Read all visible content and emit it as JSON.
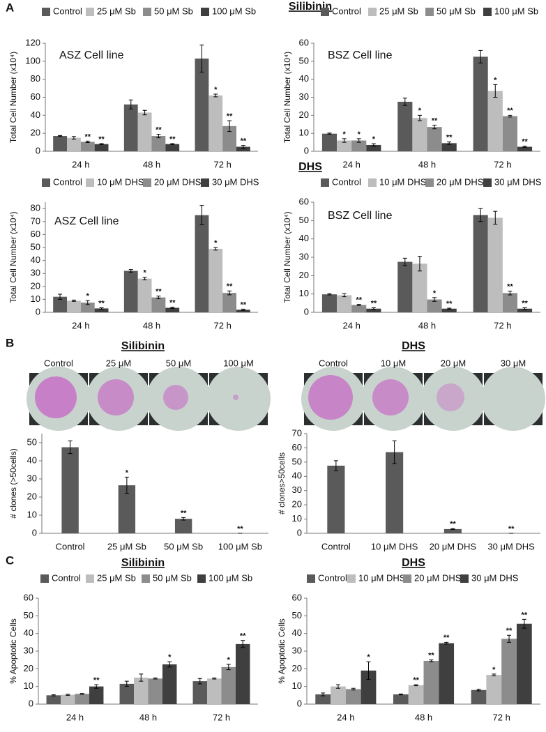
{
  "figure": {
    "panel_labels": [
      "A",
      "B",
      "C"
    ],
    "headings": [
      "Silibinin",
      "DHS",
      "Silibinin",
      "DHS",
      "Silibinin",
      "DHS"
    ],
    "photo_labels": [
      [
        "Control",
        "25 μM",
        "50 μM",
        "100 μM"
      ],
      [
        "Control",
        "10 μM",
        "20 μM",
        "30 μM"
      ]
    ]
  },
  "chart_data": [
    {
      "type": "bar",
      "annotation": "ASZ Cell line",
      "ylabel": "Total Cell Number (x10⁴)",
      "categories": [
        "24 h",
        "48 h",
        "72 h"
      ],
      "ylim": [
        0,
        120
      ],
      "yticks": [
        0,
        20,
        40,
        60,
        80,
        100,
        120
      ],
      "series": [
        {
          "name": "Control",
          "color": "#5a5a5a",
          "values": [
            17,
            52,
            103
          ],
          "errors": [
            0.5,
            5,
            15
          ],
          "significance": [
            null,
            null,
            null
          ]
        },
        {
          "name": "25 μM Sb",
          "color": "#bdbdbd",
          "values": [
            15,
            43,
            62
          ],
          "errors": [
            1.5,
            2.5,
            1.5
          ],
          "significance": [
            null,
            null,
            "*"
          ]
        },
        {
          "name": "50 μM Sb",
          "color": "#8c8c8c",
          "values": [
            10.5,
            17,
            28
          ],
          "errors": [
            0.8,
            2,
            6
          ],
          "significance": [
            "**",
            "**",
            "**"
          ]
        },
        {
          "name": "100 μM Sb",
          "color": "#3f3f3f",
          "values": [
            8,
            8,
            5
          ],
          "errors": [
            0.5,
            0.5,
            1.5
          ],
          "significance": [
            "**",
            "**",
            "**"
          ]
        }
      ]
    },
    {
      "type": "bar",
      "annotation": "BSZ Cell line",
      "ylabel": "Total Cell Number (x10⁴)",
      "categories": [
        "24 h",
        "48 h",
        "72 h"
      ],
      "ylim": [
        0,
        60
      ],
      "yticks": [
        0,
        10,
        20,
        30,
        40,
        50,
        60
      ],
      "series": [
        {
          "name": "Control",
          "color": "#5a5a5a",
          "values": [
            9.8,
            27.5,
            52.5
          ],
          "errors": [
            0.3,
            2,
            3.5
          ],
          "significance": [
            null,
            null,
            null
          ]
        },
        {
          "name": "25 μM Sb",
          "color": "#bdbdbd",
          "values": [
            6,
            18.5,
            33.5
          ],
          "errors": [
            1,
            1.5,
            3.5
          ],
          "significance": [
            "*",
            "*",
            "*"
          ]
        },
        {
          "name": "50 μM Sb",
          "color": "#8c8c8c",
          "values": [
            6,
            13.5,
            19.5
          ],
          "errors": [
            1,
            1,
            0.5
          ],
          "significance": [
            "*",
            "**",
            "**"
          ]
        },
        {
          "name": "100 μM Sb",
          "color": "#3f3f3f",
          "values": [
            3.5,
            4.5,
            2.5
          ],
          "errors": [
            0.7,
            0.7,
            0.3
          ],
          "significance": [
            "*",
            "**",
            "**"
          ]
        }
      ]
    },
    {
      "type": "bar",
      "annotation": "ASZ Cell line",
      "ylabel": "Total Cell Number (x10⁴)",
      "categories": [
        "24 h",
        "48 h",
        "72 h"
      ],
      "ylim": [
        0,
        85
      ],
      "yticks": [
        0,
        10,
        20,
        30,
        40,
        50,
        60,
        70,
        80
      ],
      "series": [
        {
          "name": "Control",
          "color": "#5a5a5a",
          "values": [
            12,
            32,
            75
          ],
          "errors": [
            2,
            1,
            7.5
          ],
          "significance": [
            null,
            null,
            null
          ]
        },
        {
          "name": "10 μM DHS",
          "color": "#bdbdbd",
          "values": [
            9,
            26,
            49
          ],
          "errors": [
            0.5,
            1,
            1
          ],
          "significance": [
            null,
            "*",
            "*"
          ]
        },
        {
          "name": "20 μM DHS",
          "color": "#8c8c8c",
          "values": [
            7.5,
            11.5,
            15
          ],
          "errors": [
            1.5,
            1,
            1.5
          ],
          "significance": [
            "*",
            "**",
            "**"
          ]
        },
        {
          "name": "30 μM DHS",
          "color": "#3f3f3f",
          "values": [
            3,
            3.5,
            2
          ],
          "errors": [
            0.5,
            0.5,
            0.5
          ],
          "significance": [
            "**",
            "**",
            "**"
          ]
        }
      ]
    },
    {
      "type": "bar",
      "annotation": "BSZ Cell line",
      "ylabel": "Total Cell Number (x10⁴)",
      "categories": [
        "24 h",
        "48 h",
        "72 h"
      ],
      "ylim": [
        0,
        60
      ],
      "yticks": [
        0,
        10,
        20,
        30,
        40,
        50,
        60
      ],
      "series": [
        {
          "name": "Control",
          "color": "#5a5a5a",
          "values": [
            9.8,
            27.5,
            53
          ],
          "errors": [
            0.3,
            2,
            3.5
          ],
          "significance": [
            null,
            null,
            null
          ]
        },
        {
          "name": "10 μM DHS",
          "color": "#bdbdbd",
          "values": [
            9.3,
            26.5,
            51.5
          ],
          "errors": [
            0.8,
            4,
            3.5
          ],
          "significance": [
            null,
            null,
            null
          ]
        },
        {
          "name": "20 μM DHS",
          "color": "#8c8c8c",
          "values": [
            4,
            7,
            10.5
          ],
          "errors": [
            0.3,
            1,
            1
          ],
          "significance": [
            "**",
            "*",
            "**"
          ]
        },
        {
          "name": "30 μM DHS",
          "color": "#3f3f3f",
          "values": [
            2,
            2,
            2
          ],
          "errors": [
            0.5,
            0.3,
            0.5
          ],
          "significance": [
            "**",
            "**",
            "**"
          ]
        }
      ]
    },
    {
      "type": "bar",
      "ylabel": "# clones (>50cells)",
      "categories": [
        "Control",
        "25 μM Sb",
        "50 μM Sb",
        "100 μM Sb"
      ],
      "ylim": [
        0,
        55
      ],
      "yticks": [
        0,
        10,
        20,
        30,
        40,
        50
      ],
      "color": "#5a5a5a",
      "values": [
        47.5,
        26.5,
        8,
        0
      ],
      "errors": [
        3.5,
        4.5,
        0.7,
        0
      ],
      "significance": [
        null,
        "*",
        "**",
        "**"
      ]
    },
    {
      "type": "bar",
      "ylabel": "# clones>50cells",
      "categories": [
        "Control",
        "10 μM DHS",
        "20 μM DHS",
        "30 μM DHS"
      ],
      "ylim": [
        0,
        70
      ],
      "yticks": [
        0,
        10,
        20,
        30,
        40,
        50,
        60,
        70
      ],
      "color": "#5a5a5a",
      "values": [
        47.5,
        57,
        3,
        0
      ],
      "errors": [
        3.5,
        8,
        0.3,
        0
      ],
      "significance": [
        null,
        null,
        "**",
        "**"
      ]
    },
    {
      "type": "bar",
      "ylabel": "% Apoptotic Cells",
      "categories": [
        "24 h",
        "48 h",
        "72 h"
      ],
      "ylim": [
        0,
        60
      ],
      "yticks": [
        0,
        10,
        20,
        30,
        40,
        50,
        60
      ],
      "series": [
        {
          "name": "Control",
          "color": "#5a5a5a",
          "values": [
            5,
            11.5,
            13
          ],
          "errors": [
            0.3,
            1.5,
            1.5
          ],
          "significance": [
            null,
            null,
            null
          ]
        },
        {
          "name": "25 μM Sb",
          "color": "#bdbdbd",
          "values": [
            5.3,
            15,
            14.5
          ],
          "errors": [
            0.3,
            2,
            0.3
          ],
          "significance": [
            null,
            null,
            null
          ]
        },
        {
          "name": "50 μM Sb",
          "color": "#8c8c8c",
          "values": [
            5.8,
            14.5,
            21
          ],
          "errors": [
            0.2,
            0.3,
            1.5
          ],
          "significance": [
            null,
            null,
            "*"
          ]
        },
        {
          "name": "100 μM Sb",
          "color": "#3f3f3f",
          "values": [
            10,
            22.5,
            34
          ],
          "errors": [
            1,
            1.5,
            2
          ],
          "significance": [
            "**",
            "*",
            "**"
          ]
        }
      ]
    },
    {
      "type": "bar",
      "ylabel": "% Apoptotic Cells",
      "categories": [
        "24 h",
        "48 h",
        "72 h"
      ],
      "ylim": [
        0,
        60
      ],
      "yticks": [
        0,
        10,
        20,
        30,
        40,
        50,
        60
      ],
      "series": [
        {
          "name": "Control",
          "color": "#5a5a5a",
          "values": [
            5.5,
            5.5,
            8
          ],
          "errors": [
            0.8,
            0.2,
            0.5
          ],
          "significance": [
            null,
            null,
            null
          ]
        },
        {
          "name": "10 μM DHS",
          "color": "#bdbdbd",
          "values": [
            10,
            10.7,
            16.5
          ],
          "errors": [
            1,
            0.3,
            0.5
          ],
          "significance": [
            null,
            "**",
            "*"
          ]
        },
        {
          "name": "20 μM DHS",
          "color": "#8c8c8c",
          "values": [
            8.5,
            24.5,
            37
          ],
          "errors": [
            0.5,
            0.5,
            2
          ],
          "significance": [
            null,
            "**",
            "**"
          ]
        },
        {
          "name": "30 μM DHS",
          "color": "#3f3f3f",
          "values": [
            19,
            34.5,
            45.5
          ],
          "errors": [
            5,
            0.5,
            2.5
          ],
          "significance": [
            "*",
            "**",
            "**"
          ]
        }
      ]
    }
  ]
}
